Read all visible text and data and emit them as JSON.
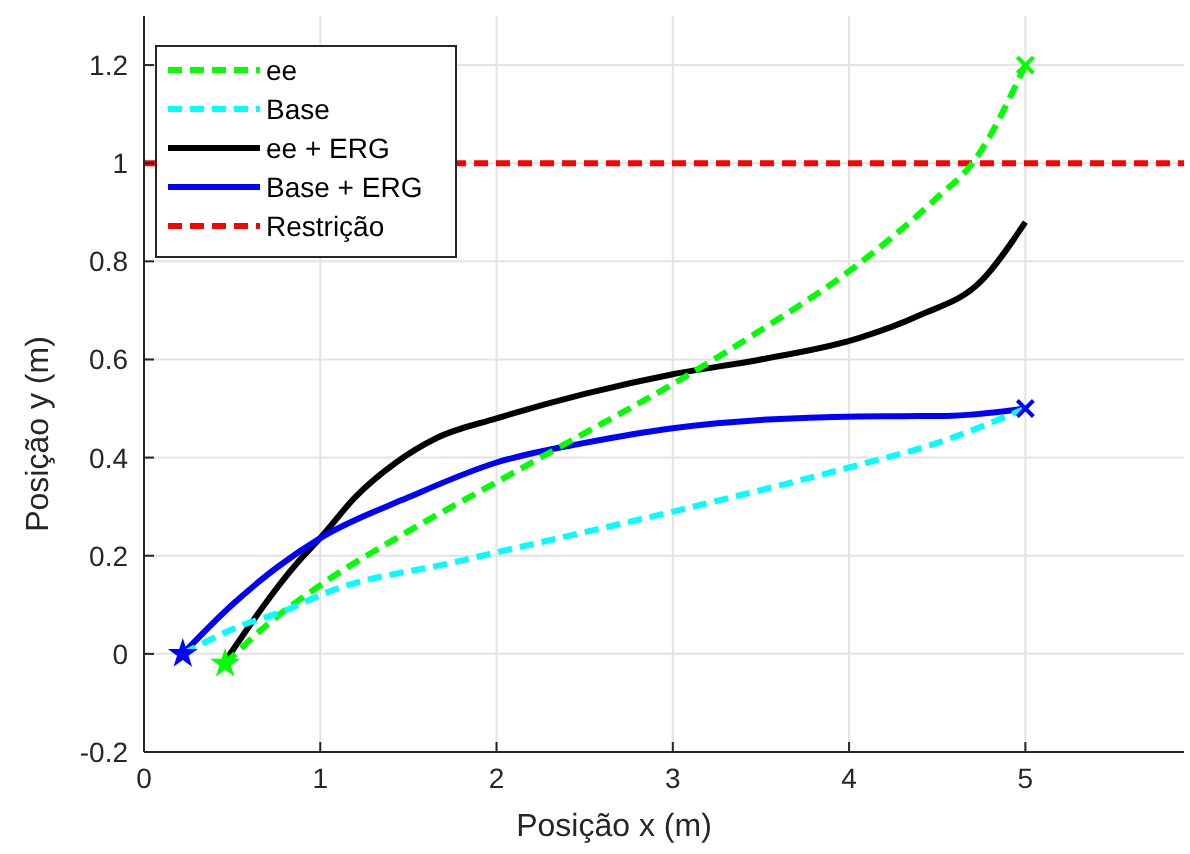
{
  "chart_data": {
    "type": "line",
    "xlabel": "Posição x (m)",
    "ylabel": "Posição y (m)",
    "xlim": [
      0,
      5.9
    ],
    "ylim": [
      -0.2,
      1.3
    ],
    "xticks": [
      0,
      1,
      2,
      3,
      4,
      5
    ],
    "yticks": [
      -0.2,
      0,
      0.2,
      0.4,
      0.6,
      0.8,
      1,
      1.2
    ],
    "grid": true,
    "legend": "top left",
    "series": [
      {
        "name": "ee",
        "color": "#00ff00",
        "line_style": "dashed",
        "x": [
          0.46,
          0.7,
          1.0,
          1.5,
          2.0,
          2.5,
          3.0,
          3.5,
          4.0,
          4.5,
          4.7,
          5.0
        ],
        "values": [
          -0.02,
          0.06,
          0.14,
          0.25,
          0.35,
          0.45,
          0.55,
          0.66,
          0.78,
          0.93,
          1.0,
          1.2
        ]
      },
      {
        "name": "Base",
        "color": "#00ffff",
        "line_style": "dashed",
        "x": [
          0.22,
          0.5,
          0.84,
          1.0,
          1.8,
          3.0,
          4.0,
          4.5,
          5.0
        ],
        "values": [
          0,
          0.05,
          0.094,
          0.12,
          0.19,
          0.29,
          0.38,
          0.43,
          0.5
        ]
      },
      {
        "name": "ee + ERG",
        "color": "#000000",
        "line_style": "solid",
        "x": [
          0.47,
          0.88,
          1.0,
          1.2,
          1.43,
          1.66,
          2.0,
          2.5,
          3.0,
          3.5,
          4.05,
          4.4,
          4.75,
          5.0
        ],
        "values": [
          -0.01,
          0.19,
          0.236,
          0.32,
          0.39,
          0.44,
          0.48,
          0.53,
          0.57,
          0.6,
          0.643,
          0.69,
          0.76,
          0.88
        ]
      },
      {
        "name": "Base + ERG",
        "color": "#0000ff",
        "line_style": "solid",
        "x": [
          0.22,
          0.5,
          0.75,
          1.0,
          1.5,
          2.0,
          2.5,
          3.0,
          4.05,
          4.55,
          5.0
        ],
        "values": [
          0,
          0.1,
          0.175,
          0.236,
          0.319,
          0.39,
          0.43,
          0.46,
          0.484,
          0.485,
          0.5
        ]
      },
      {
        "type": "scatter",
        "color": "#00ff00",
        "marker": "star",
        "x": [
          0.46
        ],
        "values": [
          -0.02
        ]
      },
      {
        "type": "scatter",
        "color": "#00ff00",
        "marker": "cross",
        "x": [
          5.0
        ],
        "values": [
          1.2
        ]
      },
      {
        "type": "scatter",
        "color": "#0000ff",
        "marker": "star",
        "x": [
          0.22
        ],
        "values": [
          0
        ]
      },
      {
        "type": "scatter",
        "color": "#0000ff",
        "marker": "cross",
        "x": [
          5.0
        ],
        "values": [
          0.5
        ]
      }
    ],
    "ref_lines": [
      {
        "axis": "y",
        "value": 1,
        "label": "Restrição",
        "color": "#ff0000",
        "line_style": "dashed"
      }
    ]
  }
}
